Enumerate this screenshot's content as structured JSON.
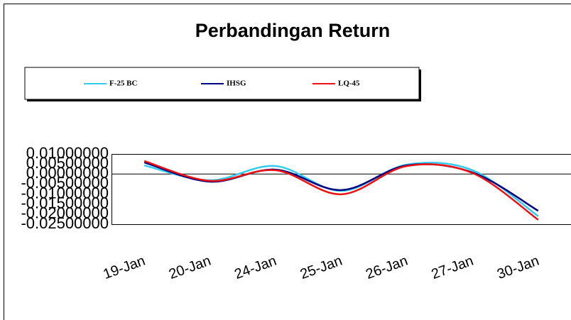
{
  "chart_data": {
    "type": "line",
    "title": "Perbandingan Return",
    "categories": [
      "19-Jan",
      "20-Jan",
      "24-Jan",
      "25-Jan",
      "26-Jan",
      "27-Jan",
      "30-Jan"
    ],
    "series": [
      {
        "name": "F-25 BC",
        "color": "#33ccee",
        "values": [
          0.0043,
          -0.0031,
          0.004,
          -0.0084,
          0.0047,
          0.0019,
          -0.021
        ]
      },
      {
        "name": "IHSG",
        "color": "#000080",
        "values": [
          0.0058,
          -0.0038,
          0.0022,
          -0.008,
          0.0043,
          0.0008,
          -0.0183
        ]
      },
      {
        "name": "LQ-45",
        "color": "#ee1111",
        "values": [
          0.0065,
          -0.0034,
          0.0019,
          -0.0101,
          0.004,
          0.0005,
          -0.0228
        ]
      }
    ],
    "ylim": [
      -0.025,
      0.01
    ],
    "yticks": [
      {
        "value": 0.01,
        "label": "0.01000000"
      },
      {
        "value": 0.005,
        "label": "0.00500000"
      },
      {
        "value": 0,
        "label": "0.00000000"
      },
      {
        "value": -0.005,
        "label": "-0.00500000"
      },
      {
        "value": -0.01,
        "label": "-0.01000000"
      },
      {
        "value": -0.015,
        "label": "-0.01500000"
      },
      {
        "value": -0.02,
        "label": "-0.02000000"
      },
      {
        "value": -0.025,
        "label": "-0.02500000"
      }
    ],
    "legend": "top",
    "grid": false,
    "smooth": true
  }
}
